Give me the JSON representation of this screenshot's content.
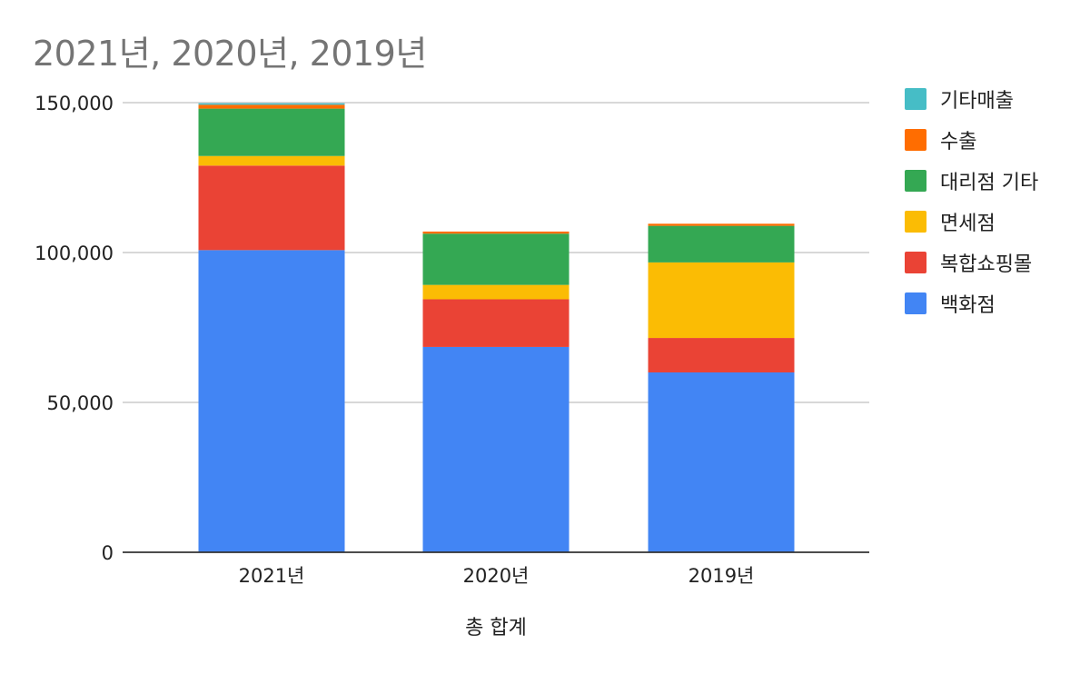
{
  "chart_data": {
    "type": "bar",
    "stacked": true,
    "title": "2021년, 2020년, 2019년",
    "xlabel": "총 합계",
    "ylabel": "",
    "ylim": [
      0,
      150000
    ],
    "yticks": [
      0,
      50000,
      100000,
      150000
    ],
    "ytick_labels": [
      "0",
      "50,000",
      "100,000",
      "150,000"
    ],
    "grid": true,
    "legend_position": "right",
    "categories": [
      "2021년",
      "2020년",
      "2019년"
    ],
    "series": [
      {
        "name": "백화점",
        "color": "#4285F4",
        "values": [
          100800,
          68500,
          60000
        ]
      },
      {
        "name": "복합쇼핑몰",
        "color": "#EA4335",
        "values": [
          28200,
          15900,
          11500
        ]
      },
      {
        "name": "면세점",
        "color": "#FBBC04",
        "values": [
          3200,
          4800,
          25200
        ]
      },
      {
        "name": "대리점 기타",
        "color": "#34A853",
        "values": [
          15800,
          17100,
          12200
        ]
      },
      {
        "name": "수출",
        "color": "#FF6D01",
        "values": [
          1300,
          700,
          700
        ]
      },
      {
        "name": "기타매출",
        "color": "#46BDC6",
        "values": [
          500,
          0,
          0
        ]
      }
    ]
  }
}
